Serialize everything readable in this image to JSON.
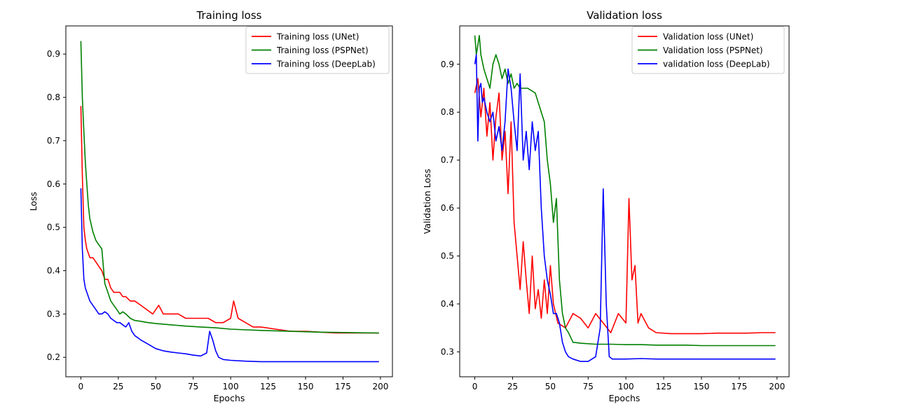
{
  "chart_data": [
    {
      "type": "line",
      "title": "Training loss",
      "xlabel": "Epochs",
      "ylabel": "Loss",
      "xlim": [
        -10,
        208
      ],
      "ylim": [
        0.155,
        0.965
      ],
      "xticks": [
        0,
        25,
        50,
        75,
        100,
        125,
        150,
        175,
        200
      ],
      "yticks": [
        0.2,
        0.3,
        0.4,
        0.5,
        0.6,
        0.7,
        0.8,
        0.9
      ],
      "legend_position": "top-right",
      "grid": false,
      "series": [
        {
          "name": "Training loss (UNet)",
          "color": "#ff0000",
          "x": [
            0,
            1,
            2,
            3,
            4,
            5,
            6,
            8,
            10,
            12,
            14,
            16,
            18,
            20,
            22,
            24,
            26,
            28,
            30,
            33,
            36,
            40,
            44,
            48,
            50,
            52,
            55,
            60,
            65,
            70,
            75,
            80,
            85,
            90,
            95,
            100,
            102,
            105,
            110,
            115,
            120,
            130,
            140,
            150,
            160,
            170,
            180,
            190,
            199
          ],
          "y": [
            0.78,
            0.62,
            0.5,
            0.47,
            0.45,
            0.44,
            0.43,
            0.43,
            0.42,
            0.41,
            0.4,
            0.38,
            0.38,
            0.36,
            0.35,
            0.35,
            0.35,
            0.34,
            0.34,
            0.33,
            0.33,
            0.32,
            0.31,
            0.3,
            0.31,
            0.32,
            0.3,
            0.3,
            0.3,
            0.29,
            0.29,
            0.29,
            0.29,
            0.28,
            0.28,
            0.29,
            0.33,
            0.29,
            0.28,
            0.27,
            0.27,
            0.265,
            0.26,
            0.26,
            0.258,
            0.256,
            0.256,
            0.256,
            0.256
          ]
        },
        {
          "name": "Training loss (PSPNet)",
          "color": "#008000",
          "x": [
            0,
            1,
            2,
            3,
            4,
            5,
            6,
            8,
            10,
            12,
            14,
            16,
            18,
            20,
            22,
            24,
            26,
            28,
            30,
            33,
            36,
            40,
            45,
            50,
            60,
            70,
            80,
            90,
            100,
            120,
            140,
            160,
            180,
            199
          ],
          "y": [
            0.93,
            0.8,
            0.72,
            0.65,
            0.6,
            0.55,
            0.52,
            0.49,
            0.47,
            0.46,
            0.45,
            0.37,
            0.35,
            0.33,
            0.32,
            0.31,
            0.3,
            0.305,
            0.3,
            0.29,
            0.285,
            0.283,
            0.28,
            0.278,
            0.275,
            0.272,
            0.27,
            0.268,
            0.265,
            0.262,
            0.26,
            0.258,
            0.257,
            0.256
          ]
        },
        {
          "name": "Training loss (DeepLab)",
          "color": "#0000ff",
          "x": [
            0,
            1,
            2,
            3,
            4,
            5,
            6,
            8,
            10,
            12,
            14,
            16,
            18,
            20,
            22,
            24,
            26,
            28,
            30,
            32,
            34,
            36,
            40,
            45,
            50,
            55,
            60,
            65,
            70,
            75,
            80,
            84,
            86,
            88,
            90,
            92,
            95,
            100,
            110,
            120,
            140,
            160,
            180,
            199
          ],
          "y": [
            0.59,
            0.45,
            0.38,
            0.36,
            0.35,
            0.34,
            0.33,
            0.32,
            0.31,
            0.3,
            0.3,
            0.305,
            0.3,
            0.29,
            0.285,
            0.28,
            0.28,
            0.275,
            0.27,
            0.28,
            0.26,
            0.25,
            0.24,
            0.23,
            0.22,
            0.215,
            0.212,
            0.21,
            0.208,
            0.205,
            0.203,
            0.21,
            0.26,
            0.24,
            0.215,
            0.2,
            0.195,
            0.193,
            0.191,
            0.19,
            0.19,
            0.19,
            0.19,
            0.19
          ]
        }
      ]
    },
    {
      "type": "line",
      "title": "Validation loss",
      "xlabel": "Epochs",
      "ylabel": "Validation Loss",
      "xlim": [
        -10,
        208
      ],
      "ylim": [
        0.248,
        0.98
      ],
      "xticks": [
        0,
        25,
        50,
        75,
        100,
        125,
        150,
        175,
        200
      ],
      "yticks": [
        0.3,
        0.4,
        0.5,
        0.6,
        0.7,
        0.8,
        0.9
      ],
      "legend_position": "top-right",
      "grid": false,
      "series": [
        {
          "name": "Validation loss (UNet)",
          "color": "#ff0000",
          "x": [
            0,
            2,
            4,
            6,
            8,
            10,
            12,
            14,
            16,
            18,
            20,
            22,
            24,
            26,
            28,
            30,
            32,
            34,
            36,
            38,
            40,
            42,
            44,
            46,
            48,
            50,
            52,
            55,
            60,
            65,
            70,
            75,
            80,
            85,
            90,
            95,
            100,
            102,
            104,
            106,
            108,
            110,
            115,
            120,
            130,
            140,
            150,
            160,
            170,
            180,
            190,
            199
          ],
          "y": [
            0.84,
            0.87,
            0.79,
            0.85,
            0.75,
            0.82,
            0.7,
            0.79,
            0.84,
            0.7,
            0.76,
            0.63,
            0.78,
            0.57,
            0.5,
            0.43,
            0.53,
            0.45,
            0.38,
            0.5,
            0.39,
            0.43,
            0.37,
            0.45,
            0.38,
            0.48,
            0.4,
            0.36,
            0.35,
            0.38,
            0.37,
            0.35,
            0.38,
            0.36,
            0.34,
            0.38,
            0.36,
            0.62,
            0.45,
            0.48,
            0.36,
            0.38,
            0.35,
            0.34,
            0.338,
            0.338,
            0.338,
            0.339,
            0.339,
            0.339,
            0.34,
            0.34
          ]
        },
        {
          "name": "Validation loss (PSPNet)",
          "color": "#008000",
          "x": [
            0,
            1,
            2,
            3,
            4,
            6,
            8,
            10,
            12,
            14,
            16,
            18,
            20,
            22,
            24,
            26,
            28,
            30,
            35,
            40,
            42,
            44,
            46,
            48,
            50,
            52,
            54,
            56,
            58,
            60,
            62,
            65,
            70,
            80,
            90,
            100,
            110,
            120,
            130,
            140,
            150,
            160,
            170,
            180,
            190,
            199
          ],
          "y": [
            0.96,
            0.92,
            0.94,
            0.96,
            0.92,
            0.89,
            0.87,
            0.85,
            0.9,
            0.92,
            0.9,
            0.87,
            0.89,
            0.86,
            0.88,
            0.85,
            0.86,
            0.85,
            0.85,
            0.84,
            0.82,
            0.8,
            0.78,
            0.7,
            0.65,
            0.57,
            0.62,
            0.45,
            0.38,
            0.35,
            0.34,
            0.32,
            0.318,
            0.316,
            0.316,
            0.315,
            0.315,
            0.314,
            0.314,
            0.314,
            0.313,
            0.313,
            0.313,
            0.313,
            0.313,
            0.313
          ]
        },
        {
          "name": "validation loss (DeepLab)",
          "color": "#0000ff",
          "x": [
            0,
            1,
            2,
            3,
            4,
            5,
            6,
            8,
            10,
            12,
            14,
            16,
            18,
            20,
            22,
            24,
            26,
            28,
            30,
            32,
            34,
            36,
            38,
            40,
            42,
            44,
            46,
            48,
            50,
            52,
            54,
            56,
            58,
            60,
            62,
            65,
            70,
            75,
            80,
            83,
            85,
            87,
            89,
            91,
            95,
            100,
            110,
            120,
            140,
            160,
            180,
            199
          ],
          "y": [
            0.9,
            0.92,
            0.74,
            0.85,
            0.86,
            0.82,
            0.83,
            0.8,
            0.78,
            0.8,
            0.74,
            0.77,
            0.72,
            0.78,
            0.89,
            0.85,
            0.78,
            0.72,
            0.88,
            0.7,
            0.76,
            0.68,
            0.78,
            0.72,
            0.76,
            0.6,
            0.5,
            0.45,
            0.42,
            0.38,
            0.38,
            0.36,
            0.32,
            0.3,
            0.29,
            0.285,
            0.28,
            0.28,
            0.29,
            0.35,
            0.64,
            0.4,
            0.29,
            0.285,
            0.285,
            0.285,
            0.286,
            0.285,
            0.285,
            0.285,
            0.285,
            0.285
          ]
        }
      ]
    }
  ]
}
